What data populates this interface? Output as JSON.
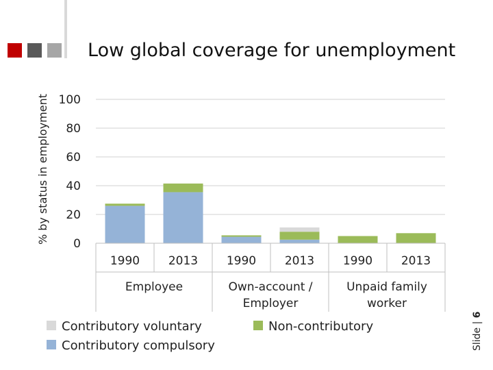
{
  "header": {
    "title": "Low global coverage for unemployment",
    "slide_label": "Slide",
    "slide_separator": "|",
    "slide_number": "6",
    "square_colors": [
      "#c00000",
      "#595959",
      "#a6a6a6"
    ]
  },
  "chart_data": {
    "type": "bar",
    "stacked": true,
    "ylabel": "% by status in employment",
    "xlabel": "",
    "ylim": [
      0,
      100
    ],
    "yticks": [
      0,
      20,
      40,
      60,
      80,
      100
    ],
    "grid": true,
    "legend_position": "bottom",
    "categories": [
      "1990",
      "2013",
      "1990",
      "2013",
      "1990",
      "2013"
    ],
    "groups": [
      {
        "label_lines": [
          "Employee"
        ]
      },
      {
        "label_lines": [
          "Own-account /",
          "Employer"
        ]
      },
      {
        "label_lines": [
          "Unpaid family",
          "worker"
        ]
      }
    ],
    "series": [
      {
        "name": "Contributory compulsory",
        "color": "#95b3d7",
        "values": [
          26,
          35.5,
          4.5,
          2.5,
          0,
          0
        ]
      },
      {
        "name": "Non-contributory",
        "color": "#9bbb59",
        "values": [
          1.5,
          6,
          1,
          5.5,
          5,
          7
        ]
      },
      {
        "name": "Contributory voluntary",
        "color": "#d9d9d9",
        "values": [
          0,
          0,
          0,
          3,
          0,
          0
        ]
      }
    ],
    "legend_order": [
      "Contributory voluntary",
      "Non-contributory",
      "Contributory compulsory"
    ]
  }
}
